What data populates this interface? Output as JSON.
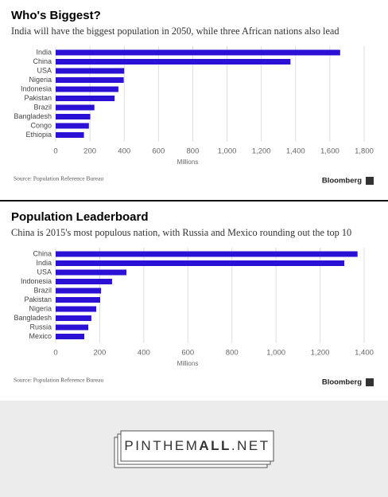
{
  "chart_data": [
    {
      "type": "bar",
      "orientation": "horizontal",
      "title": "Who's Biggest?",
      "subtitle": "India will have the biggest population in 2050, while three African nations also lead",
      "categories": [
        "India",
        "China",
        "USA",
        "Nigeria",
        "Indonesia",
        "Pakistan",
        "Brazil",
        "Bangladesh",
        "Congo",
        "Ethiopia"
      ],
      "values": [
        1660,
        1370,
        400,
        397,
        366,
        344,
        226,
        202,
        194,
        165
      ],
      "color": "#2b10d6",
      "xlabel": "Millions",
      "xlim": [
        0,
        1800
      ],
      "xticks": [
        0,
        200,
        400,
        600,
        800,
        {
          "value": 1000,
          "label": "1,000"
        },
        {
          "value": 1200,
          "label": "1,200"
        },
        {
          "value": 1400,
          "label": "1,400"
        },
        {
          "value": 1600,
          "label": "1,600"
        },
        {
          "value": 1800,
          "label": "1,800"
        }
      ],
      "grid": true,
      "source": "Source: Population Reference Bureau",
      "brand": "Bloomberg"
    },
    {
      "type": "bar",
      "orientation": "horizontal",
      "title": "Population Leaderboard",
      "subtitle": "China is 2015's most populous nation, with Russia and Mexico rounding out the top 10",
      "categories": [
        "China",
        "India",
        "USA",
        "Indonesia",
        "Brazil",
        "Pakistan",
        "Nigeria",
        "Bangladesh",
        "Russia",
        "Mexico"
      ],
      "values": [
        1370,
        1310,
        321,
        256,
        206,
        202,
        184,
        162,
        148,
        130
      ],
      "color": "#2b10d6",
      "xlabel": "Millions",
      "xlim": [
        0,
        1400
      ],
      "xticks": [
        0,
        200,
        400,
        600,
        800,
        {
          "value": 1000,
          "label": "1,000"
        },
        {
          "value": 1200,
          "label": "1,200"
        },
        {
          "value": 1400,
          "label": "1,400"
        }
      ],
      "grid": true,
      "source": "Source: Population Reference Bureau",
      "brand": "Bloomberg"
    }
  ],
  "footer": {
    "parts": [
      "PINTHEM",
      "ALL",
      ".NET"
    ]
  }
}
